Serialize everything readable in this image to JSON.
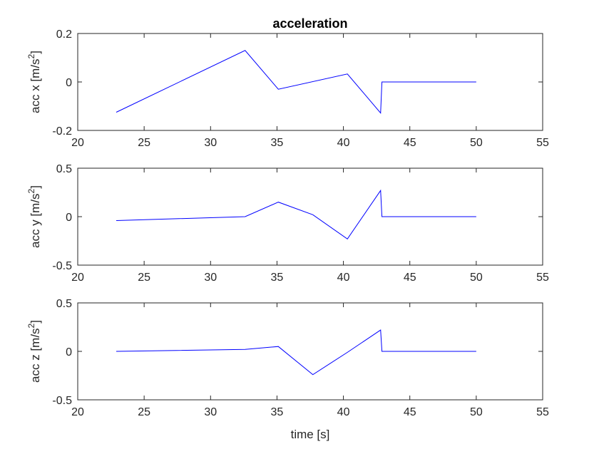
{
  "chart_data": [
    {
      "type": "line",
      "title": "acceleration",
      "ylabel": "acc x [m/s",
      "ylabel_sup": "2",
      "ylabel_suffix": "]",
      "xlabel": "",
      "xlim": [
        20,
        55
      ],
      "ylim": [
        -0.2,
        0.2
      ],
      "xticks": [
        20,
        25,
        30,
        35,
        40,
        45,
        50,
        55
      ],
      "yticks": [
        -0.2,
        0,
        0.2
      ],
      "xtick_labels": [
        "20",
        "25",
        "30",
        "35",
        "40",
        "45",
        "50",
        "55"
      ],
      "ytick_labels": [
        "-0.2",
        "0",
        "0.2"
      ],
      "grid": false,
      "color": "#0000ff",
      "series": [
        {
          "x": [
            22.9,
            32.6,
            35.1,
            40.3,
            42.8,
            42.9,
            50.0
          ],
          "y": [
            -0.125,
            0.13,
            -0.03,
            0.033,
            -0.128,
            0.0,
            0.0
          ]
        }
      ]
    },
    {
      "type": "line",
      "title": "",
      "ylabel": "acc y [m/s",
      "ylabel_sup": "2",
      "ylabel_suffix": "]",
      "xlabel": "",
      "xlim": [
        20,
        55
      ],
      "ylim": [
        -0.5,
        0.5
      ],
      "xticks": [
        20,
        25,
        30,
        35,
        40,
        45,
        50,
        55
      ],
      "yticks": [
        -0.5,
        0,
        0.5
      ],
      "xtick_labels": [
        "20",
        "25",
        "30",
        "35",
        "40",
        "45",
        "50",
        "55"
      ],
      "ytick_labels": [
        "-0.5",
        "0",
        "0.5"
      ],
      "grid": false,
      "color": "#0000ff",
      "series": [
        {
          "x": [
            22.9,
            32.6,
            35.1,
            37.7,
            40.3,
            42.8,
            42.9,
            50.0
          ],
          "y": [
            -0.04,
            0.0,
            0.15,
            0.02,
            -0.23,
            0.27,
            0.0,
            0.0
          ]
        }
      ]
    },
    {
      "type": "line",
      "title": "",
      "ylabel": "acc z [m/s",
      "ylabel_sup": "2",
      "ylabel_suffix": "]",
      "xlabel": "time [s]",
      "xlim": [
        20,
        55
      ],
      "ylim": [
        -0.5,
        0.5
      ],
      "xticks": [
        20,
        25,
        30,
        35,
        40,
        45,
        50,
        55
      ],
      "yticks": [
        -0.5,
        0,
        0.5
      ],
      "xtick_labels": [
        "20",
        "25",
        "30",
        "35",
        "40",
        "45",
        "50",
        "55"
      ],
      "ytick_labels": [
        "-0.5",
        "0",
        "0.5"
      ],
      "grid": false,
      "color": "#0000ff",
      "series": [
        {
          "x": [
            22.9,
            32.6,
            35.1,
            37.7,
            40.3,
            42.8,
            42.9,
            50.0
          ],
          "y": [
            0.0,
            0.02,
            0.05,
            -0.24,
            -0.01,
            0.22,
            0.0,
            0.0
          ]
        }
      ]
    }
  ]
}
